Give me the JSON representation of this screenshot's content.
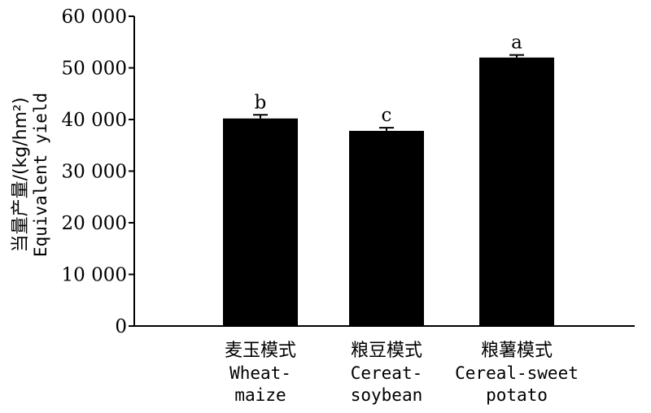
{
  "chart_data": {
    "type": "bar",
    "ylabel_cn": "当量产量/(kg/hm²)",
    "ylabel_en": "Equivalent yield",
    "ylim": [
      0,
      60000
    ],
    "yticks": [
      0,
      10000,
      20000,
      30000,
      40000,
      50000,
      60000
    ],
    "ytick_labels": [
      "0",
      "10 000",
      "20 000",
      "30 000",
      "40 000",
      "50 000",
      "60 000"
    ],
    "categories": [
      {
        "cn": "麦玉模式",
        "en": [
          "Wheat-",
          "maize"
        ]
      },
      {
        "cn": "粮豆模式",
        "en": [
          "Cereat-",
          "soybean"
        ]
      },
      {
        "cn": "粮薯模式",
        "en": [
          "Cereal-sweet",
          "potato"
        ]
      }
    ],
    "values": [
      40200,
      37800,
      52000
    ],
    "errors": [
      700,
      600,
      500
    ],
    "significance": [
      "b",
      "c",
      "a"
    ],
    "bar_color": "#000000",
    "grid": false
  }
}
